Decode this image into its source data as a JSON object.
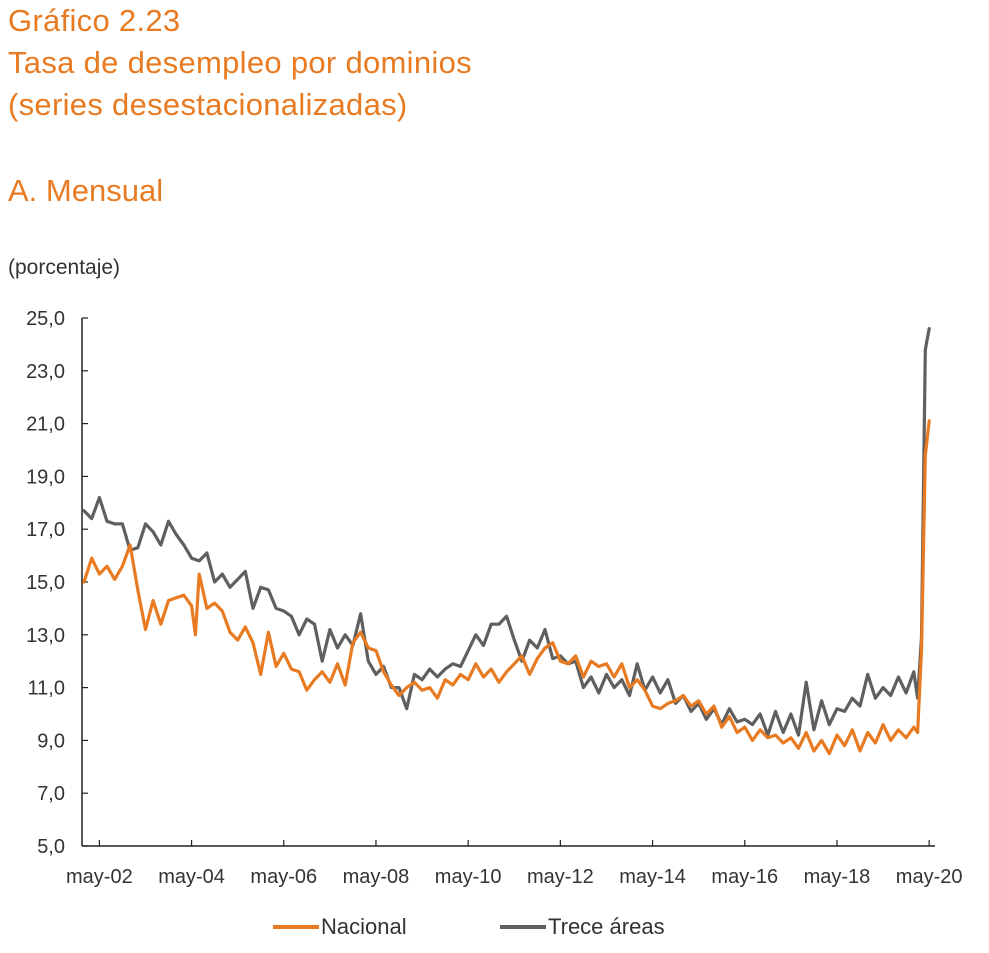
{
  "header": {
    "title_line1": "Gráfico 2.23",
    "title_line2": "Tasa de desempleo por dominios",
    "title_line3": "(series desestacionalizadas)",
    "subtitle": "A. Mensual",
    "unit": "(porcentaje)"
  },
  "colors": {
    "nacional": "#e87b22",
    "trece": "#5f5f5f",
    "title": "#e87b22"
  },
  "chart_data": {
    "type": "line",
    "title": "Tasa de desempleo por dominios",
    "subtitle": "A. Mensual",
    "ylabel": "(porcentaje)",
    "xlabel": "",
    "ylim": [
      5.0,
      25.0
    ],
    "yticks": [
      "5,0",
      "7,0",
      "9,0",
      "11,0",
      "13,0",
      "15,0",
      "17,0",
      "19,0",
      "21,0",
      "23,0",
      "25,0"
    ],
    "yticks_values": [
      5,
      7,
      9,
      11,
      13,
      15,
      17,
      19,
      21,
      23,
      25
    ],
    "xlim": [
      "2002-01",
      "2020-06"
    ],
    "xticks": [
      "may-02",
      "may-04",
      "may-06",
      "may-08",
      "may-10",
      "may-12",
      "may-14",
      "may-16",
      "may-18",
      "may-20"
    ],
    "xticks_dates": [
      "2002-05",
      "2004-05",
      "2006-05",
      "2008-05",
      "2010-05",
      "2012-05",
      "2014-05",
      "2016-05",
      "2018-05",
      "2020-05"
    ],
    "legend_position": "bottom",
    "grid": false,
    "series": [
      {
        "name": "Nacional",
        "points": [
          [
            "2002-01",
            15.0
          ],
          [
            "2002-03",
            15.9
          ],
          [
            "2002-05",
            15.3
          ],
          [
            "2002-07",
            15.6
          ],
          [
            "2002-09",
            15.1
          ],
          [
            "2002-11",
            15.6
          ],
          [
            "2003-01",
            16.4
          ],
          [
            "2003-03",
            14.7
          ],
          [
            "2003-05",
            13.2
          ],
          [
            "2003-07",
            14.3
          ],
          [
            "2003-09",
            13.4
          ],
          [
            "2003-11",
            14.3
          ],
          [
            "2004-01",
            14.4
          ],
          [
            "2004-03",
            14.5
          ],
          [
            "2004-05",
            14.1
          ],
          [
            "2004-06",
            13.0
          ],
          [
            "2004-07",
            15.3
          ],
          [
            "2004-09",
            14.0
          ],
          [
            "2004-11",
            14.2
          ],
          [
            "2005-01",
            13.9
          ],
          [
            "2005-03",
            13.1
          ],
          [
            "2005-05",
            12.8
          ],
          [
            "2005-07",
            13.3
          ],
          [
            "2005-09",
            12.7
          ],
          [
            "2005-11",
            11.5
          ],
          [
            "2006-01",
            13.1
          ],
          [
            "2006-03",
            11.8
          ],
          [
            "2006-05",
            12.3
          ],
          [
            "2006-07",
            11.7
          ],
          [
            "2006-09",
            11.6
          ],
          [
            "2006-11",
            10.9
          ],
          [
            "2007-01",
            11.3
          ],
          [
            "2007-03",
            11.6
          ],
          [
            "2007-05",
            11.2
          ],
          [
            "2007-07",
            11.9
          ],
          [
            "2007-09",
            11.1
          ],
          [
            "2007-11",
            12.7
          ],
          [
            "2008-01",
            13.1
          ],
          [
            "2008-03",
            12.5
          ],
          [
            "2008-05",
            12.4
          ],
          [
            "2008-07",
            11.6
          ],
          [
            "2008-09",
            11.1
          ],
          [
            "2008-11",
            10.7
          ],
          [
            "2009-01",
            11.0
          ],
          [
            "2009-03",
            11.2
          ],
          [
            "2009-05",
            10.9
          ],
          [
            "2009-07",
            11.0
          ],
          [
            "2009-09",
            10.6
          ],
          [
            "2009-11",
            11.3
          ],
          [
            "2010-01",
            11.1
          ],
          [
            "2010-03",
            11.5
          ],
          [
            "2010-05",
            11.3
          ],
          [
            "2010-07",
            11.9
          ],
          [
            "2010-09",
            11.4
          ],
          [
            "2010-11",
            11.7
          ],
          [
            "2011-01",
            11.2
          ],
          [
            "2011-03",
            11.6
          ],
          [
            "2011-05",
            11.9
          ],
          [
            "2011-07",
            12.2
          ],
          [
            "2011-09",
            11.5
          ],
          [
            "2011-11",
            12.1
          ],
          [
            "2012-01",
            12.5
          ],
          [
            "2012-03",
            12.7
          ],
          [
            "2012-05",
            12.0
          ],
          [
            "2012-07",
            11.9
          ],
          [
            "2012-09",
            12.2
          ],
          [
            "2012-11",
            11.4
          ],
          [
            "2013-01",
            12.0
          ],
          [
            "2013-03",
            11.8
          ],
          [
            "2013-05",
            11.9
          ],
          [
            "2013-07",
            11.4
          ],
          [
            "2013-09",
            11.9
          ],
          [
            "2013-11",
            11.0
          ],
          [
            "2014-01",
            11.3
          ],
          [
            "2014-03",
            10.9
          ],
          [
            "2014-05",
            10.3
          ],
          [
            "2014-07",
            10.2
          ],
          [
            "2014-09",
            10.4
          ],
          [
            "2014-11",
            10.5
          ],
          [
            "2015-01",
            10.7
          ],
          [
            "2015-03",
            10.3
          ],
          [
            "2015-05",
            10.5
          ],
          [
            "2015-07",
            10.0
          ],
          [
            "2015-09",
            10.3
          ],
          [
            "2015-11",
            9.5
          ],
          [
            "2016-01",
            9.9
          ],
          [
            "2016-03",
            9.3
          ],
          [
            "2016-05",
            9.5
          ],
          [
            "2016-07",
            9.0
          ],
          [
            "2016-09",
            9.4
          ],
          [
            "2016-11",
            9.1
          ],
          [
            "2017-01",
            9.2
          ],
          [
            "2017-03",
            8.9
          ],
          [
            "2017-05",
            9.1
          ],
          [
            "2017-07",
            8.7
          ],
          [
            "2017-09",
            9.3
          ],
          [
            "2017-11",
            8.6
          ],
          [
            "2018-01",
            9.0
          ],
          [
            "2018-03",
            8.5
          ],
          [
            "2018-05",
            9.2
          ],
          [
            "2018-07",
            8.8
          ],
          [
            "2018-09",
            9.4
          ],
          [
            "2018-11",
            8.6
          ],
          [
            "2019-01",
            9.3
          ],
          [
            "2019-03",
            8.9
          ],
          [
            "2019-05",
            9.6
          ],
          [
            "2019-07",
            9.0
          ],
          [
            "2019-09",
            9.4
          ],
          [
            "2019-11",
            9.1
          ],
          [
            "2020-01",
            9.5
          ],
          [
            "2020-02",
            9.3
          ],
          [
            "2020-03",
            12.4
          ],
          [
            "2020-04",
            19.8
          ],
          [
            "2020-05",
            21.1
          ]
        ]
      },
      {
        "name": "Trece áreas",
        "points": [
          [
            "2002-01",
            17.7
          ],
          [
            "2002-03",
            17.4
          ],
          [
            "2002-05",
            18.2
          ],
          [
            "2002-07",
            17.3
          ],
          [
            "2002-09",
            17.2
          ],
          [
            "2002-11",
            17.2
          ],
          [
            "2003-01",
            16.2
          ],
          [
            "2003-03",
            16.3
          ],
          [
            "2003-05",
            17.2
          ],
          [
            "2003-07",
            16.9
          ],
          [
            "2003-09",
            16.4
          ],
          [
            "2003-11",
            17.3
          ],
          [
            "2004-01",
            16.8
          ],
          [
            "2004-03",
            16.4
          ],
          [
            "2004-05",
            15.9
          ],
          [
            "2004-07",
            15.8
          ],
          [
            "2004-09",
            16.1
          ],
          [
            "2004-11",
            15.0
          ],
          [
            "2005-01",
            15.3
          ],
          [
            "2005-03",
            14.8
          ],
          [
            "2005-05",
            15.1
          ],
          [
            "2005-07",
            15.4
          ],
          [
            "2005-09",
            14.0
          ],
          [
            "2005-11",
            14.8
          ],
          [
            "2006-01",
            14.7
          ],
          [
            "2006-03",
            14.0
          ],
          [
            "2006-05",
            13.9
          ],
          [
            "2006-07",
            13.7
          ],
          [
            "2006-09",
            13.0
          ],
          [
            "2006-11",
            13.6
          ],
          [
            "2007-01",
            13.4
          ],
          [
            "2007-03",
            12.0
          ],
          [
            "2007-05",
            13.2
          ],
          [
            "2007-07",
            12.5
          ],
          [
            "2007-09",
            13.0
          ],
          [
            "2007-11",
            12.6
          ],
          [
            "2008-01",
            13.8
          ],
          [
            "2008-03",
            12.0
          ],
          [
            "2008-05",
            11.5
          ],
          [
            "2008-07",
            11.8
          ],
          [
            "2008-09",
            11.0
          ],
          [
            "2008-11",
            11.0
          ],
          [
            "2009-01",
            10.2
          ],
          [
            "2009-03",
            11.5
          ],
          [
            "2009-05",
            11.3
          ],
          [
            "2009-07",
            11.7
          ],
          [
            "2009-09",
            11.4
          ],
          [
            "2009-11",
            11.7
          ],
          [
            "2010-01",
            11.9
          ],
          [
            "2010-03",
            11.8
          ],
          [
            "2010-05",
            12.4
          ],
          [
            "2010-07",
            13.0
          ],
          [
            "2010-09",
            12.6
          ],
          [
            "2010-11",
            13.4
          ],
          [
            "2011-01",
            13.4
          ],
          [
            "2011-03",
            13.7
          ],
          [
            "2011-05",
            12.8
          ],
          [
            "2011-07",
            12.0
          ],
          [
            "2011-09",
            12.8
          ],
          [
            "2011-11",
            12.5
          ],
          [
            "2012-01",
            13.2
          ],
          [
            "2012-03",
            12.1
          ],
          [
            "2012-05",
            12.2
          ],
          [
            "2012-07",
            11.9
          ],
          [
            "2012-09",
            12.0
          ],
          [
            "2012-11",
            11.0
          ],
          [
            "2013-01",
            11.4
          ],
          [
            "2013-03",
            10.8
          ],
          [
            "2013-05",
            11.5
          ],
          [
            "2013-07",
            11.0
          ],
          [
            "2013-09",
            11.3
          ],
          [
            "2013-11",
            10.7
          ],
          [
            "2014-01",
            11.9
          ],
          [
            "2014-03",
            10.9
          ],
          [
            "2014-05",
            11.4
          ],
          [
            "2014-07",
            10.8
          ],
          [
            "2014-09",
            11.3
          ],
          [
            "2014-11",
            10.4
          ],
          [
            "2015-01",
            10.7
          ],
          [
            "2015-03",
            10.1
          ],
          [
            "2015-05",
            10.4
          ],
          [
            "2015-07",
            9.8
          ],
          [
            "2015-09",
            10.2
          ],
          [
            "2015-11",
            9.6
          ],
          [
            "2016-01",
            10.2
          ],
          [
            "2016-03",
            9.7
          ],
          [
            "2016-05",
            9.8
          ],
          [
            "2016-07",
            9.6
          ],
          [
            "2016-09",
            10.0
          ],
          [
            "2016-11",
            9.2
          ],
          [
            "2017-01",
            10.1
          ],
          [
            "2017-03",
            9.3
          ],
          [
            "2017-05",
            10.0
          ],
          [
            "2017-07",
            9.2
          ],
          [
            "2017-09",
            11.2
          ],
          [
            "2017-11",
            9.4
          ],
          [
            "2018-01",
            10.5
          ],
          [
            "2018-03",
            9.6
          ],
          [
            "2018-05",
            10.2
          ],
          [
            "2018-07",
            10.1
          ],
          [
            "2018-09",
            10.6
          ],
          [
            "2018-11",
            10.3
          ],
          [
            "2019-01",
            11.5
          ],
          [
            "2019-03",
            10.6
          ],
          [
            "2019-05",
            11.0
          ],
          [
            "2019-07",
            10.7
          ],
          [
            "2019-09",
            11.4
          ],
          [
            "2019-11",
            10.8
          ],
          [
            "2020-01",
            11.6
          ],
          [
            "2020-02",
            10.6
          ],
          [
            "2020-03",
            12.9
          ],
          [
            "2020-04",
            23.8
          ],
          [
            "2020-05",
            24.6
          ]
        ]
      }
    ]
  }
}
